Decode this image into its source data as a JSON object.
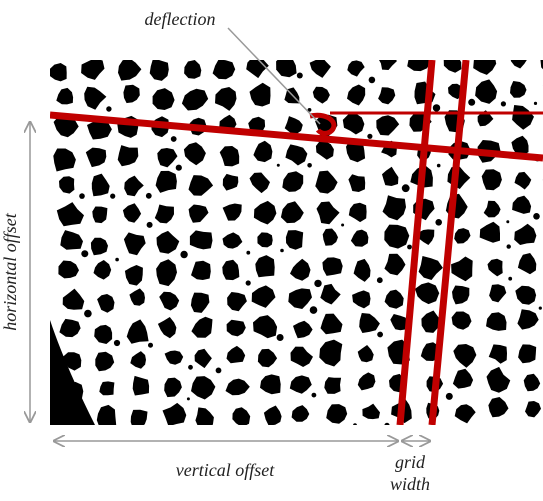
{
  "labels": {
    "deflection": "deflection",
    "horizontal_offset": "horizontal offset",
    "vertical_offset": "vertical offset",
    "grid_width": [
      "grid",
      "width"
    ]
  }
}
